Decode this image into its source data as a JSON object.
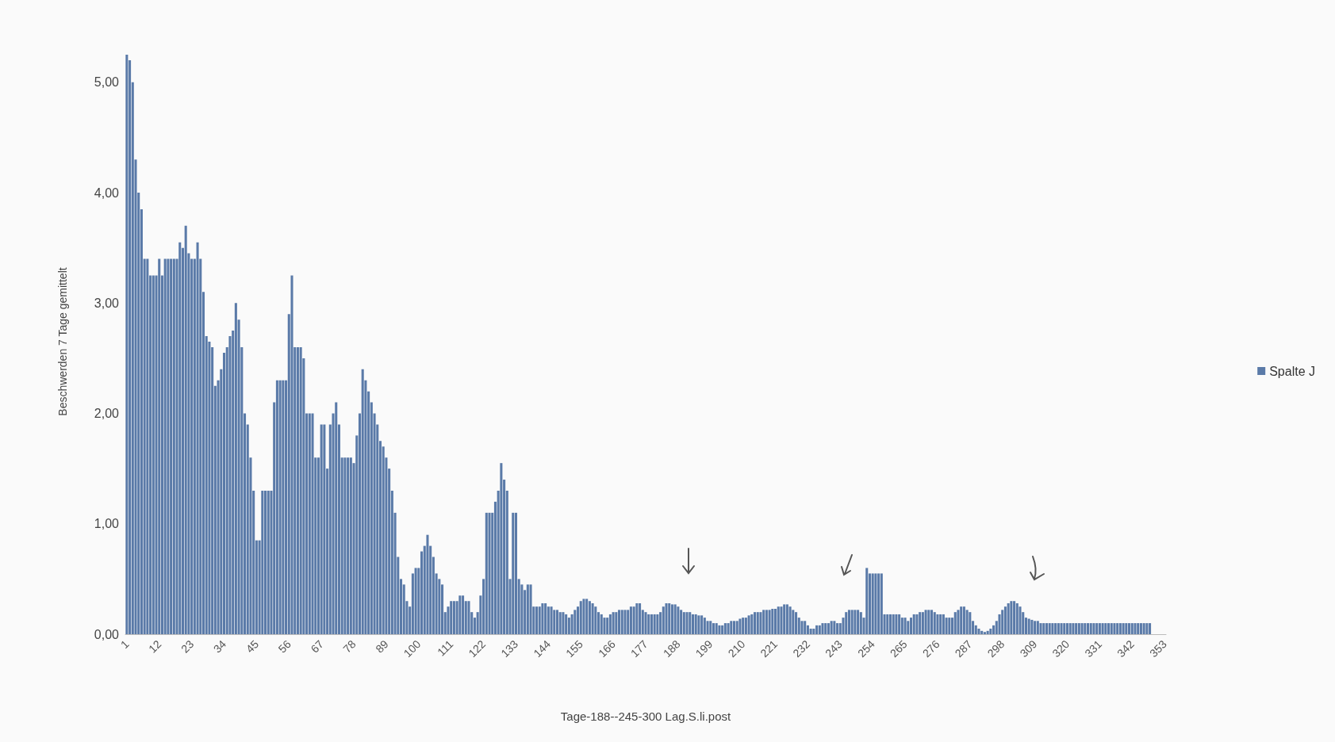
{
  "chart_data": {
    "type": "bar",
    "xlabel": "Tage-188--245-300 Lag.S.li.post",
    "ylabel": "Beschwerden 7 Tage gemittelt",
    "categories": [
      "1",
      null,
      null,
      null,
      null,
      null,
      null,
      null,
      null,
      null,
      null,
      "12",
      null,
      null,
      null,
      null,
      null,
      null,
      null,
      null,
      null,
      null,
      "23",
      null,
      null,
      null,
      null,
      null,
      null,
      null,
      null,
      null,
      null,
      "34",
      null,
      null,
      null,
      null,
      null,
      null,
      null,
      null,
      null,
      null,
      "45",
      null,
      null,
      null,
      null,
      null,
      null,
      null,
      null,
      null,
      null,
      "56",
      null,
      null,
      null,
      null,
      null,
      null,
      null,
      null,
      null,
      null,
      "67",
      null,
      null,
      null,
      null,
      null,
      null,
      null,
      null,
      null,
      null,
      "78",
      null,
      null,
      null,
      null,
      null,
      null,
      null,
      null,
      null,
      null,
      "89",
      null,
      null,
      null,
      null,
      null,
      null,
      null,
      null,
      null,
      null,
      "100",
      null,
      null,
      null,
      null,
      null,
      null,
      null,
      null,
      null,
      null,
      "111",
      null,
      null,
      null,
      null,
      null,
      null,
      null,
      null,
      null,
      null,
      "122",
      null,
      null,
      null,
      null,
      null,
      null,
      null,
      null,
      null,
      null,
      "133",
      null,
      null,
      null,
      null,
      null,
      null,
      null,
      null,
      null,
      null,
      "144",
      null,
      null,
      null,
      null,
      null,
      null,
      null,
      null,
      null,
      null,
      "155",
      null,
      null,
      null,
      null,
      null,
      null,
      null,
      null,
      null,
      null,
      "166",
      null,
      null,
      null,
      null,
      null,
      null,
      null,
      null,
      null,
      null,
      "177",
      null,
      null,
      null,
      null,
      null,
      null,
      null,
      null,
      null,
      null,
      "188",
      null,
      null,
      null,
      null,
      null,
      null,
      null,
      null,
      null,
      null,
      "199",
      null,
      null,
      null,
      null,
      null,
      null,
      null,
      null,
      null,
      null,
      "210",
      null,
      null,
      null,
      null,
      null,
      null,
      null,
      null,
      null,
      null,
      "221",
      null,
      null,
      null,
      null,
      null,
      null,
      null,
      null,
      null,
      null,
      "232",
      null,
      null,
      null,
      null,
      null,
      null,
      null,
      null,
      null,
      null,
      "243",
      null,
      null,
      null,
      null,
      null,
      null,
      null,
      null,
      null,
      null,
      "254",
      null,
      null,
      null,
      null,
      null,
      null,
      null,
      null,
      null,
      null,
      "265",
      null,
      null,
      null,
      null,
      null,
      null,
      null,
      null,
      null,
      null,
      "276",
      null,
      null,
      null,
      null,
      null,
      null,
      null,
      null,
      null,
      null,
      "287",
      null,
      null,
      null,
      null,
      null,
      null,
      null,
      null,
      null,
      null,
      "298",
      null,
      null,
      null,
      null,
      null,
      null,
      null,
      null,
      null,
      null,
      "309",
      null,
      null,
      null,
      null,
      null,
      null,
      null,
      null,
      null,
      null,
      "320",
      null,
      null,
      null,
      null,
      null,
      null,
      null,
      null,
      null,
      null,
      "331",
      null,
      null,
      null,
      null,
      null,
      null,
      null,
      null,
      null,
      null,
      "342",
      null,
      null,
      null,
      null,
      null,
      null,
      null,
      null,
      null,
      null,
      "353"
    ],
    "series": [
      {
        "name": "Spalte J",
        "color": "#5a7aa8",
        "values": [
          5.25,
          5.2,
          5.0,
          4.3,
          4.0,
          3.85,
          3.4,
          3.4,
          3.25,
          3.25,
          3.25,
          3.4,
          3.25,
          3.4,
          3.4,
          3.4,
          3.4,
          3.4,
          3.55,
          3.5,
          3.7,
          3.45,
          3.4,
          3.4,
          3.55,
          3.4,
          3.1,
          2.7,
          2.65,
          2.6,
          2.25,
          2.3,
          2.4,
          2.55,
          2.6,
          2.7,
          2.75,
          3.0,
          2.85,
          2.6,
          2.0,
          1.9,
          1.6,
          1.3,
          0.85,
          0.85,
          1.3,
          1.3,
          1.3,
          1.3,
          2.1,
          2.3,
          2.3,
          2.3,
          2.3,
          2.9,
          3.25,
          2.6,
          2.6,
          2.6,
          2.5,
          2.0,
          2.0,
          2.0,
          1.6,
          1.6,
          1.9,
          1.9,
          1.5,
          1.9,
          2.0,
          2.1,
          1.9,
          1.6,
          1.6,
          1.6,
          1.6,
          1.55,
          1.8,
          2.0,
          2.4,
          2.3,
          2.2,
          2.1,
          2.0,
          1.9,
          1.75,
          1.7,
          1.6,
          1.5,
          1.3,
          1.1,
          0.7,
          0.5,
          0.45,
          0.3,
          0.25,
          0.55,
          0.6,
          0.6,
          0.75,
          0.8,
          0.9,
          0.8,
          0.7,
          0.55,
          0.5,
          0.45,
          0.2,
          0.25,
          0.3,
          0.3,
          0.3,
          0.35,
          0.35,
          0.3,
          0.3,
          0.2,
          0.15,
          0.2,
          0.35,
          0.5,
          1.1,
          1.1,
          1.1,
          1.2,
          1.3,
          1.55,
          1.4,
          1.3,
          0.5,
          1.1,
          1.1,
          0.5,
          0.45,
          0.4,
          0.45,
          0.45,
          0.25,
          0.25,
          0.25,
          0.28,
          0.28,
          0.25,
          0.25,
          0.22,
          0.22,
          0.2,
          0.2,
          0.18,
          0.15,
          0.18,
          0.22,
          0.25,
          0.3,
          0.32,
          0.32,
          0.3,
          0.28,
          0.25,
          0.2,
          0.18,
          0.15,
          0.15,
          0.18,
          0.2,
          0.2,
          0.22,
          0.22,
          0.22,
          0.22,
          0.25,
          0.25,
          0.28,
          0.28,
          0.22,
          0.2,
          0.18,
          0.18,
          0.18,
          0.18,
          0.2,
          0.25,
          0.28,
          0.28,
          0.27,
          0.27,
          0.25,
          0.22,
          0.2,
          0.2,
          0.2,
          0.18,
          0.18,
          0.17,
          0.17,
          0.15,
          0.12,
          0.12,
          0.1,
          0.1,
          0.08,
          0.08,
          0.1,
          0.1,
          0.12,
          0.12,
          0.12,
          0.14,
          0.15,
          0.15,
          0.17,
          0.18,
          0.2,
          0.2,
          0.2,
          0.22,
          0.22,
          0.22,
          0.23,
          0.23,
          0.25,
          0.25,
          0.27,
          0.27,
          0.25,
          0.22,
          0.2,
          0.15,
          0.12,
          0.12,
          0.08,
          0.05,
          0.05,
          0.08,
          0.08,
          0.1,
          0.1,
          0.1,
          0.12,
          0.12,
          0.1,
          0.1,
          0.15,
          0.2,
          0.22,
          0.22,
          0.22,
          0.22,
          0.2,
          0.15,
          0.6,
          0.55,
          0.55,
          0.55,
          0.55,
          0.55,
          0.18,
          0.18,
          0.18,
          0.18,
          0.18,
          0.18,
          0.15,
          0.15,
          0.12,
          0.15,
          0.18,
          0.18,
          0.2,
          0.2,
          0.22,
          0.22,
          0.22,
          0.2,
          0.18,
          0.18,
          0.18,
          0.15,
          0.15,
          0.15,
          0.2,
          0.22,
          0.25,
          0.25,
          0.22,
          0.2,
          0.12,
          0.08,
          0.05,
          0.03,
          0.02,
          0.03,
          0.05,
          0.08,
          0.12,
          0.18,
          0.22,
          0.25,
          0.28,
          0.3,
          0.3,
          0.28,
          0.25,
          0.2,
          0.15,
          0.14,
          0.13,
          0.12,
          0.12,
          0.1,
          0.1,
          0.1,
          0.1,
          0.1,
          0.1,
          0.1,
          0.1,
          0.1,
          0.1,
          0.1,
          0.1,
          0.1,
          0.1,
          0.1,
          0.1,
          0.1,
          0.1,
          0.1,
          0.1,
          0.1,
          0.1,
          0.1,
          0.1,
          0.1,
          0.1,
          0.1,
          0.1,
          0.1,
          0.1,
          0.1,
          0.1,
          0.1,
          0.1,
          0.1,
          0.1,
          0.1,
          0.1,
          null,
          null,
          null,
          null,
          null
        ]
      }
    ],
    "ylim": [
      0,
      5.3
    ],
    "yticks": [
      {
        "value": 0,
        "label": "0,00"
      },
      {
        "value": 1,
        "label": "1,00"
      },
      {
        "value": 2,
        "label": "2,00"
      },
      {
        "value": 3,
        "label": "3,00"
      },
      {
        "value": 4,
        "label": "4,00"
      },
      {
        "value": 5,
        "label": "5,00"
      }
    ],
    "grid": false,
    "legend": "right"
  }
}
